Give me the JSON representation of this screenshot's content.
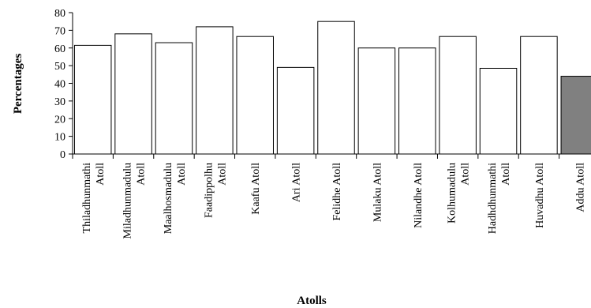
{
  "chart_data": {
    "type": "bar",
    "title": "",
    "xlabel": "Atolls",
    "ylabel": "Percentages",
    "ylim": [
      0,
      80
    ],
    "yticks": [
      "0",
      "10",
      "20",
      "30",
      "40",
      "50",
      "60",
      "70",
      "80"
    ],
    "grid": false,
    "categories": [
      [
        "Thiladhunmathi",
        "Atoll"
      ],
      [
        "Miladhunmadulu",
        "Atoll"
      ],
      [
        "Maalhosmadulu",
        "Atoll"
      ],
      [
        "Faadippolhu",
        "Atoll"
      ],
      [
        "Kaafu Atoll"
      ],
      [
        "Ari Atoll"
      ],
      [
        "Felidhe Atoll"
      ],
      [
        "Mulaku Atoll"
      ],
      [
        "Nilandhe Atoll"
      ],
      [
        "Kolhumadulu",
        "Atoll"
      ],
      [
        "Hadhdhunmathi",
        "Atoll"
      ],
      [
        "Huvadhu Atoll"
      ],
      [
        "Addu Atoll"
      ]
    ],
    "values": [
      61.5,
      68,
      63,
      72,
      66.5,
      49,
      75,
      60,
      60,
      66.5,
      48.5,
      66.5,
      44
    ],
    "colors": [
      "#ffffff",
      "#ffffff",
      "#ffffff",
      "#ffffff",
      "#ffffff",
      "#ffffff",
      "#ffffff",
      "#ffffff",
      "#ffffff",
      "#ffffff",
      "#ffffff",
      "#ffffff",
      "#808080"
    ]
  }
}
